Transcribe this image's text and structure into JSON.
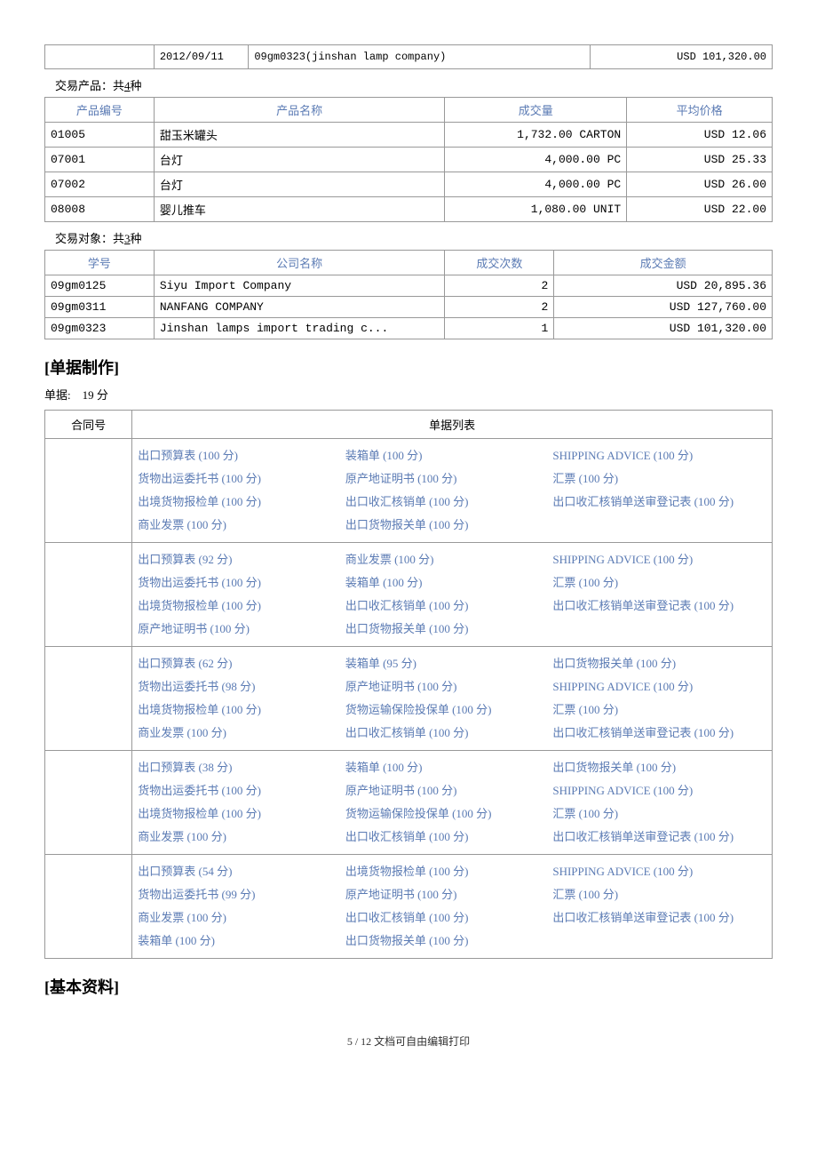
{
  "topRow": {
    "date": "2012/09/11",
    "desc": "09gm0323(jinshan lamp company)",
    "amount": "USD 101,320.00"
  },
  "products": {
    "captionPrefix": "交易产品：共",
    "count": "4",
    "captionSuffix": "种",
    "headers": [
      "产品编号",
      "产品名称",
      "成交量",
      "平均价格"
    ],
    "rows": [
      {
        "id": "01005",
        "name": "甜玉米罐头",
        "qty": "1,732.00 CARTON",
        "price": "USD 12.06"
      },
      {
        "id": "07001",
        "name": "台灯",
        "qty": "4,000.00 PC",
        "price": "USD 25.33"
      },
      {
        "id": "07002",
        "name": "台灯",
        "qty": "4,000.00 PC",
        "price": "USD 26.00"
      },
      {
        "id": "08008",
        "name": "婴儿推车",
        "qty": "1,080.00 UNIT",
        "price": "USD 22.00"
      }
    ]
  },
  "partners": {
    "captionPrefix": "交易对象：共",
    "count": "3",
    "captionSuffix": "种",
    "headers": [
      "学号",
      "公司名称",
      "成交次数",
      "成交金额"
    ],
    "rows": [
      {
        "id": "09gm0125",
        "name": "Siyu Import Company",
        "count": "2",
        "amount": "USD 20,895.36"
      },
      {
        "id": "09gm0311",
        "name": "NANFANG COMPANY",
        "count": "2",
        "amount": "USD 127,760.00"
      },
      {
        "id": "09gm0323",
        "name": "Jinshan lamps import trading c...",
        "count": "1",
        "amount": "USD 101,320.00"
      }
    ]
  },
  "docSection": {
    "title": "[单据制作]",
    "scoreLabel": "单据:",
    "scoreValue": "19 分",
    "headers": [
      "合同号",
      "单据列表"
    ],
    "rows": [
      [
        [
          "出口预算表 (100 分)",
          "装箱单 (100 分)",
          "SHIPPING ADVICE (100 分)"
        ],
        [
          "货物出运委托书 (100 分)",
          "原产地证明书 (100 分)",
          "汇票 (100 分)"
        ],
        [
          "出境货物报检单 (100 分)",
          "出口收汇核销单 (100 分)",
          "出口收汇核销单送审登记表 (100 分)"
        ],
        [
          "商业发票 (100 分)",
          "出口货物报关单 (100 分)",
          ""
        ]
      ],
      [
        [
          "出口预算表 (92 分)",
          "商业发票 (100 分)",
          "SHIPPING ADVICE (100 分)"
        ],
        [
          "货物出运委托书 (100 分)",
          "装箱单 (100 分)",
          "汇票 (100 分)"
        ],
        [
          "出境货物报检单 (100 分)",
          "出口收汇核销单 (100 分)",
          "出口收汇核销单送审登记表 (100 分)"
        ],
        [
          "原产地证明书 (100 分)",
          "出口货物报关单 (100 分)",
          ""
        ]
      ],
      [
        [
          "出口预算表 (62 分)",
          "装箱单 (95 分)",
          "出口货物报关单 (100 分)"
        ],
        [
          "货物出运委托书 (98 分)",
          "原产地证明书 (100 分)",
          "SHIPPING ADVICE (100 分)"
        ],
        [
          "出境货物报检单 (100 分)",
          "货物运输保险投保单 (100 分)",
          "汇票 (100 分)"
        ],
        [
          "商业发票 (100 分)",
          "出口收汇核销单 (100 分)",
          "出口收汇核销单送审登记表 (100 分)"
        ]
      ],
      [
        [
          "出口预算表 (38 分)",
          "装箱单 (100 分)",
          "出口货物报关单 (100 分)"
        ],
        [
          "货物出运委托书 (100 分)",
          "原产地证明书 (100 分)",
          "SHIPPING ADVICE (100 分)"
        ],
        [
          "出境货物报检单 (100 分)",
          "货物运输保险投保单 (100 分)",
          "汇票 (100 分)"
        ],
        [
          "商业发票 (100 分)",
          "出口收汇核销单 (100 分)",
          "出口收汇核销单送审登记表 (100 分)"
        ]
      ],
      [
        [
          "出口预算表 (54 分)",
          "出境货物报检单 (100 分)",
          "SHIPPING ADVICE (100 分)"
        ],
        [
          "货物出运委托书 (99 分)",
          "原产地证明书 (100 分)",
          "汇票 (100 分)"
        ],
        [
          "商业发票 (100 分)",
          "出口收汇核销单 (100 分)",
          "出口收汇核销单送审登记表 (100 分)"
        ],
        [
          "装箱单 (100 分)",
          "出口货物报关单 (100 分)",
          ""
        ]
      ]
    ]
  },
  "basicSection": {
    "title": "[基本资料]"
  },
  "footer": {
    "page": "5 / 12",
    "text": "文档可自由编辑打印"
  }
}
